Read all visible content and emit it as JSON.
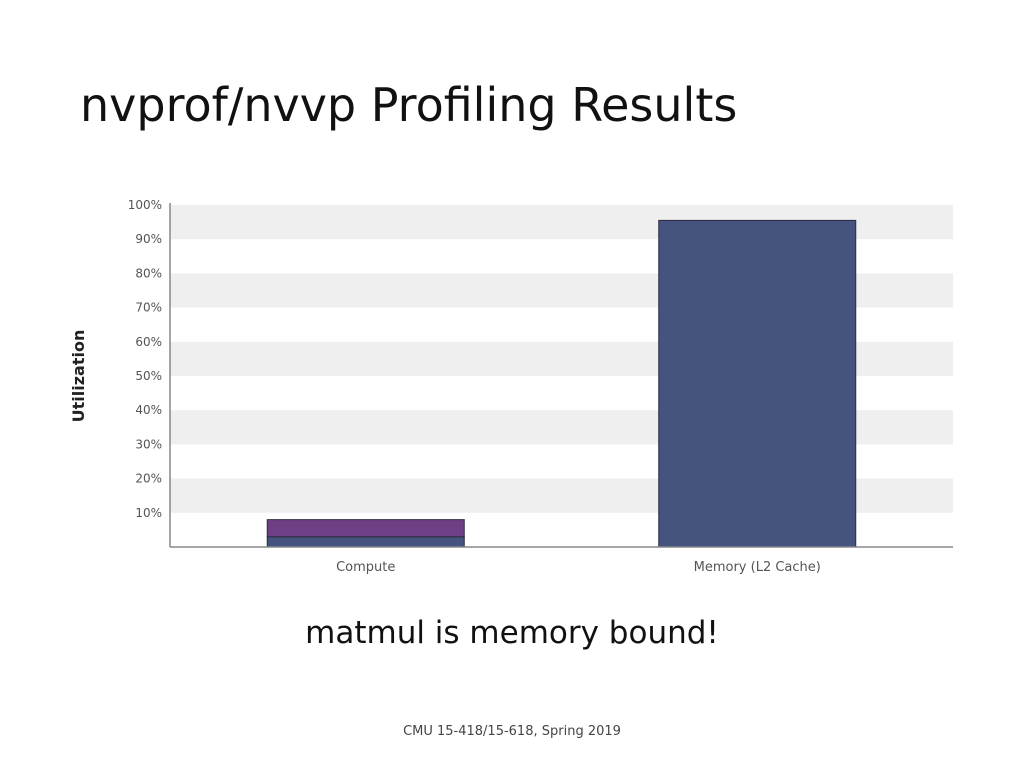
{
  "slide": {
    "title": "nvprof/nvvp Profiling Results",
    "caption": "matmul is memory bound!",
    "footer": "CMU 15-418/15-618, Spring 2019"
  },
  "chart_data": {
    "type": "bar",
    "stacked": true,
    "ylabel": "Utilization",
    "xlabel": "",
    "ylim": [
      0,
      100
    ],
    "yticks": [
      "10%",
      "20%",
      "30%",
      "40%",
      "50%",
      "60%",
      "70%",
      "80%",
      "90%",
      "100%"
    ],
    "grid": "alternating horizontal bands",
    "categories": [
      "Compute",
      "Memory (L2 Cache)"
    ],
    "series": [
      {
        "values": [
          3,
          95.5
        ],
        "color": "#44547f"
      },
      {
        "values": [
          5,
          0
        ],
        "color": "#6f3f86"
      }
    ]
  }
}
